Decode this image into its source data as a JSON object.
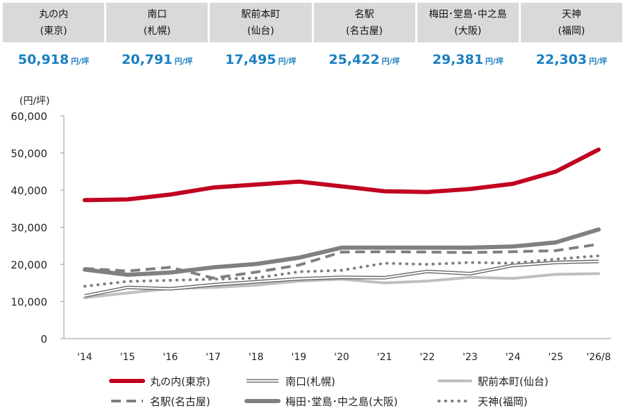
{
  "summary": {
    "unit": "円/坪",
    "columns": [
      {
        "name": "丸の内",
        "sub": "(東京)",
        "value": "50,918"
      },
      {
        "name": "南口",
        "sub": "(札幌)",
        "value": "20,791"
      },
      {
        "name": "駅前本町",
        "sub": "(仙台)",
        "value": "17,495"
      },
      {
        "name": "名駅",
        "sub": "(名古屋)",
        "value": "25,422"
      },
      {
        "name": "梅田･堂島･中之島",
        "sub": "(大阪)",
        "value": "29,381"
      },
      {
        "name": "天神",
        "sub": "(福岡)",
        "value": "22,303"
      }
    ]
  },
  "chart_data": {
    "type": "line",
    "ylabel": "(円/坪)",
    "ylim": [
      0,
      60000
    ],
    "yticks": [
      0,
      10000,
      20000,
      30000,
      40000,
      50000,
      60000
    ],
    "ytick_labels": [
      "0",
      "10,000",
      "20,000",
      "30,000",
      "40,000",
      "50,000",
      "60,000"
    ],
    "categories": [
      "'14",
      "'15",
      "'16",
      "'17",
      "'18",
      "'19",
      "'20",
      "'21",
      "'22",
      "'23",
      "'24",
      "'25",
      "'26/8"
    ],
    "grid": false,
    "legend_position": "bottom",
    "series": [
      {
        "name": "丸の内(東京)",
        "color": "#c00020",
        "style": "thick-solid",
        "values": [
          37300,
          37500,
          38800,
          40700,
          41500,
          42300,
          41000,
          39700,
          39500,
          40300,
          41700,
          45000,
          50918
        ]
      },
      {
        "name": "南口(札幌)",
        "color": "#666666",
        "style": "double-line",
        "values": [
          11500,
          13800,
          13400,
          14500,
          15300,
          16100,
          16500,
          16400,
          18100,
          17500,
          19700,
          20500,
          20791
        ]
      },
      {
        "name": "駅前本町(仙台)",
        "color": "#bfbfbf",
        "style": "medium-solid",
        "values": [
          11000,
          12300,
          13500,
          13800,
          14400,
          15500,
          16000,
          15000,
          15500,
          16500,
          16200,
          17300,
          17495
        ]
      },
      {
        "name": "名駅(名古屋)",
        "color": "#7f7f7f",
        "style": "dashed",
        "values": [
          18900,
          18200,
          19200,
          16300,
          17900,
          19800,
          23300,
          23400,
          23300,
          23200,
          23400,
          23700,
          25422
        ]
      },
      {
        "name": "梅田･堂島･中之島(大阪)",
        "color": "#808080",
        "style": "thick-solid",
        "values": [
          18600,
          17200,
          17800,
          19200,
          20100,
          21800,
          24500,
          24500,
          24500,
          24500,
          24800,
          25900,
          29381
        ]
      },
      {
        "name": "天神(福岡)",
        "color": "#7f7f7f",
        "style": "dotted",
        "values": [
          14100,
          15400,
          15700,
          16000,
          16300,
          18000,
          18400,
          20300,
          20000,
          20500,
          20300,
          21400,
          22303
        ]
      }
    ]
  }
}
